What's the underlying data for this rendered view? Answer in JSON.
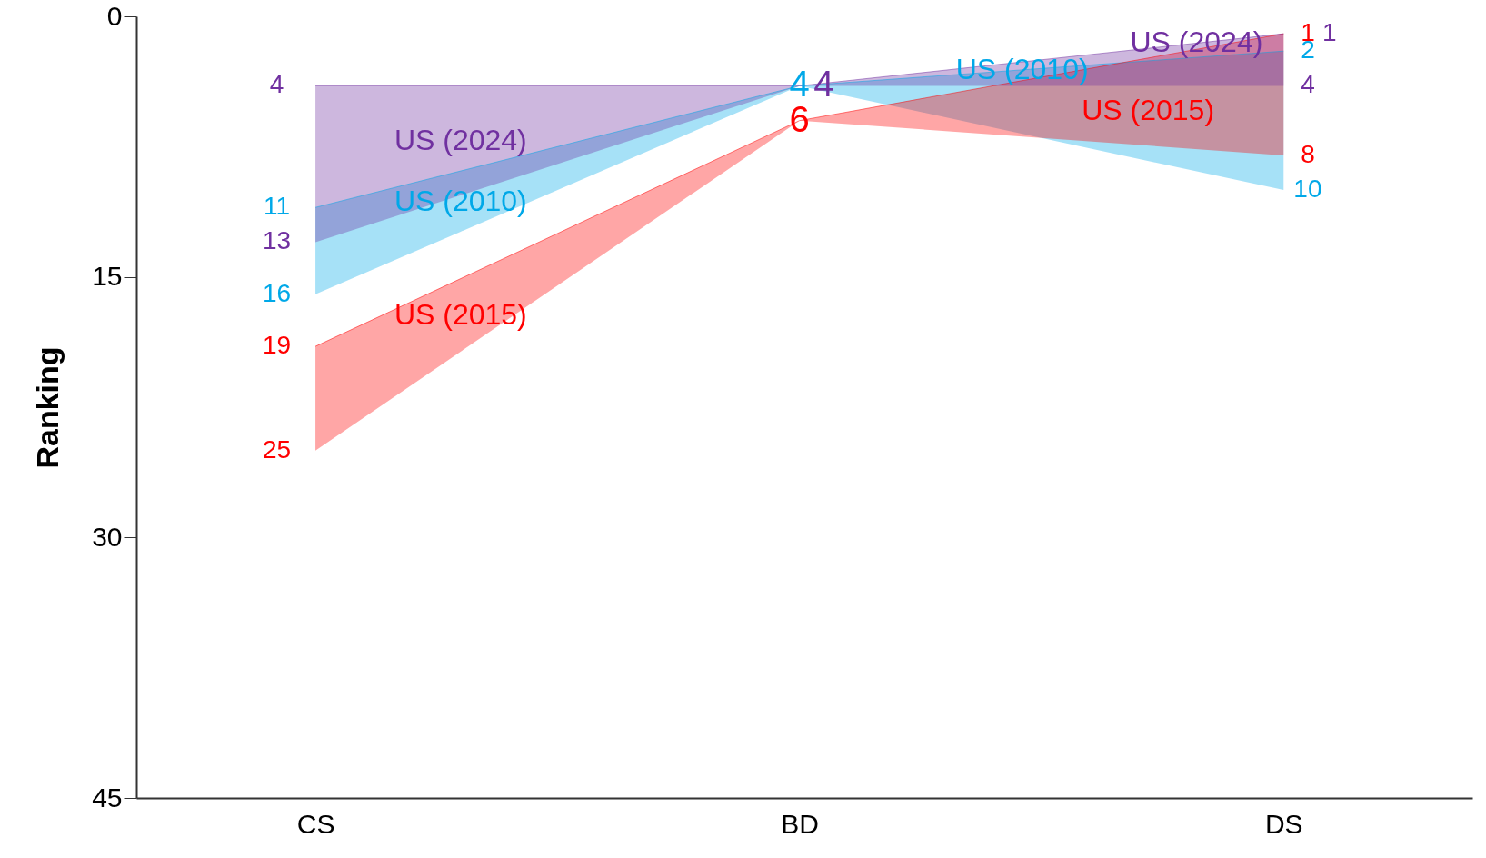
{
  "chart_data": {
    "type": "line",
    "ylabel": "Ranking",
    "categories": [
      "CS",
      "BD",
      "DS"
    ],
    "ylim": [
      45,
      0
    ],
    "yticks": [
      0,
      15,
      30,
      45
    ],
    "grid": false,
    "data_labels": true,
    "marker": "none",
    "series": [
      {
        "name": "US (2010)",
        "color": "#00a8e8",
        "values": [
          11,
          4,
          2
        ],
        "lower": [
          11,
          4,
          2
        ],
        "upper": [
          16,
          4,
          10
        ]
      },
      {
        "name": "US (2015)",
        "color": "#ff0000",
        "values": [
          19,
          6,
          1
        ],
        "lower": [
          19,
          6,
          1
        ],
        "upper": [
          25,
          6,
          8
        ]
      },
      {
        "name": "US (2024)",
        "color": "#7030a0",
        "values": [
          4,
          4,
          1
        ],
        "lower": [
          4,
          4,
          1
        ],
        "upper": [
          13,
          4,
          4
        ]
      }
    ],
    "annotations": [
      {
        "text": "16",
        "x": "CS",
        "y": 16
      },
      {
        "text": "25",
        "x": "CS",
        "y": 25
      },
      {
        "text": "13",
        "x": "CS",
        "y": 13
      },
      {
        "text": "10",
        "x": "DS",
        "y": 10
      },
      {
        "text": "8",
        "x": "DS",
        "y": 8
      },
      {
        "text": "4",
        "x": "DS",
        "y": 4
      }
    ]
  }
}
